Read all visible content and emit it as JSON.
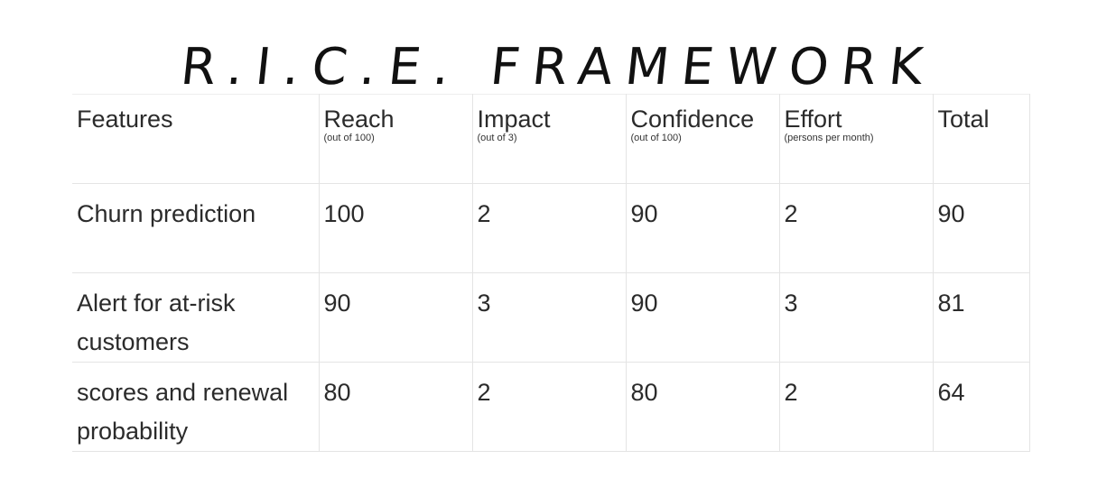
{
  "title": "R.I.C.E. FRAMEWORK",
  "table": {
    "headers": [
      {
        "label": "Features",
        "sub": ""
      },
      {
        "label": "Reach",
        "sub": "(out of 100)"
      },
      {
        "label": "Impact",
        "sub": "(out of 3)"
      },
      {
        "label": "Confidence",
        "sub": "(out of 100)"
      },
      {
        "label": "Effort",
        "sub": "(persons per month)"
      },
      {
        "label": "Total",
        "sub": ""
      }
    ],
    "rows": [
      {
        "feature": "Churn prediction",
        "reach": "100",
        "impact": "2",
        "confidence": "90",
        "effort": "2",
        "total": "90"
      },
      {
        "feature": "Alert for at-risk customers",
        "reach": "90",
        "impact": "3",
        "confidence": "90",
        "effort": "3",
        "total": "81"
      },
      {
        "feature": "scores and renewal probability",
        "reach": "80",
        "impact": "2",
        "confidence": "80",
        "effort": "2",
        "total": "64"
      }
    ]
  }
}
